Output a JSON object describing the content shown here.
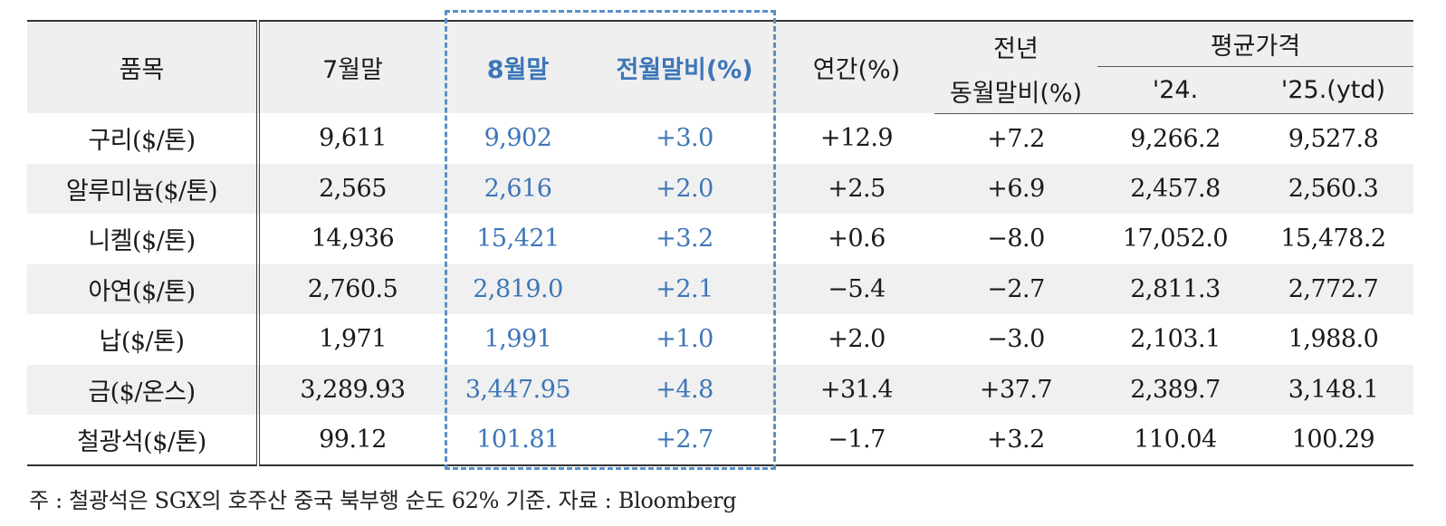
{
  "header": {
    "item": "품목",
    "jul_end": "7월말",
    "aug_end": "8월말",
    "mom": "전월말비(%)",
    "ytd": "연간(%)",
    "yoy_line1": "전년",
    "yoy_line2": "동월말비(%)",
    "avg_price": "평균가격",
    "avg_24": "'24.",
    "avg_25": "'25.(ytd)"
  },
  "rows": [
    {
      "item": "구리($/톤)",
      "jul": "9,611",
      "aug": "9,902",
      "mom": "+3.0",
      "ytd": "+12.9",
      "yoy": "+7.2",
      "avg24": "9,266.2",
      "avg25": "9,527.8"
    },
    {
      "item": "알루미늄($/톤)",
      "jul": "2,565",
      "aug": "2,616",
      "mom": "+2.0",
      "ytd": "+2.5",
      "yoy": "+6.9",
      "avg24": "2,457.8",
      "avg25": "2,560.3"
    },
    {
      "item": "니켈($/톤)",
      "jul": "14,936",
      "aug": "15,421",
      "mom": "+3.2",
      "ytd": "+0.6",
      "yoy": "−8.0",
      "avg24": "17,052.0",
      "avg25": "15,478.2"
    },
    {
      "item": "아연($/톤)",
      "jul": "2,760.5",
      "aug": "2,819.0",
      "mom": "+2.1",
      "ytd": "−5.4",
      "yoy": "−2.7",
      "avg24": "2,811.3",
      "avg25": "2,772.7"
    },
    {
      "item": "납($/톤)",
      "jul": "1,971",
      "aug": "1,991",
      "mom": "+1.0",
      "ytd": "+2.0",
      "yoy": "−3.0",
      "avg24": "2,103.1",
      "avg25": "1,988.0"
    },
    {
      "item": "금($/온스)",
      "jul": "3,289.93",
      "aug": "3,447.95",
      "mom": "+4.8",
      "ytd": "+31.4",
      "yoy": "+37.7",
      "avg24": "2,389.7",
      "avg25": "3,148.1"
    },
    {
      "item": "철광석($/톤)",
      "jul": "99.12",
      "aug": "101.81",
      "mom": "+2.7",
      "ytd": "−1.7",
      "yoy": "+3.2",
      "avg24": "110.04",
      "avg25": "100.29"
    }
  ],
  "note": "주 : 철광석은 SGX의 호주산 중국 북부행 순도 62% 기준. 자료 : Bloomberg",
  "colors": {
    "highlight": "#3d76b8",
    "dash_border": "#5b8fc7",
    "header_bg": "#efefef",
    "shade_bg": "#f0f0f0"
  }
}
